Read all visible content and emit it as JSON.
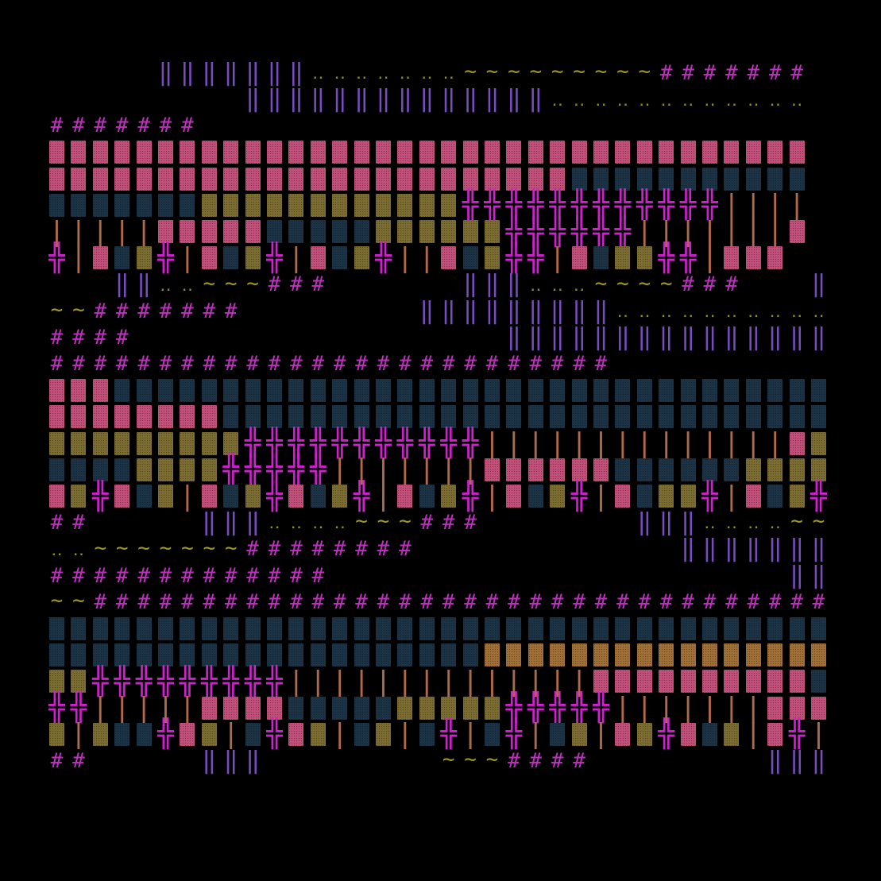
{
  "palette": {
    "background": "#000000",
    "hash": "#c030c0",
    "double_line": "#7a4cc2",
    "dots": "#8f8f30",
    "tilde": "#a09820",
    "cross": "#d020d0",
    "bar": "#b06a48",
    "block_pink": "#c2507a",
    "block_navy": "#1c3346",
    "block_olive": "#7c6e32",
    "block_orange": "#a07038"
  },
  "glyph_legend": {
    "#": "hash",
    "|": "double_line",
    ":": "dots",
    "~": "tilde",
    "+": "cross",
    "!": "bar",
    "P": "block_pink",
    "N": "block_navy",
    "O": "block_olive",
    "R": "block_orange"
  },
  "rows": [
    "                                   ",
    "     |||||||:::::::~~~~~~~~~#######",
    "         ||||||||||||||::::::::::::",
    "#######                            ",
    "PPPPPPPPPPPPPPPPPPPPPPPPPPPPPPPPPPP",
    "PPPPPPPPPPPPPPPPPPPPPPPPNNNNNNNNNNN",
    "NNNNNNNOOOOOOOOOOOO++++++++++++!!!!",
    "!!!!!PPPPPNNNNNOOOOOO++++++!!!!!!!P",
    "+!PNO+!PNO+!PNO+!!PNO++!PNOO++!PPP",
    "   ||::~~~###      |||:::~~~~###   |||::",
    "~~#######        |||||||||:::::::::::~~~~",
    "####                 ||||||||||||||||",
    "##########################          ",
    "PPPNNNNNNNNNNNNNNNNNNNNNNNNNNNNNNNNN",
    "PPPPPPPPNNNNNNNNNNNNNNNNNNNNNNNNNNNN",
    "OOOOOOOOO+++++++++++!!!!!!!!!!!!!!PO",
    "NNNNOOOO+++++!!!!!!!PPPPPPNNNNNNOOOOR",
    "PO+PNO!PNO+PNO+!PNO+!PNO+!PNOO+!PNO+",
    "##     |||::::~~~###       |||::::~~~####",
    "::~~~~~~~########            ||||||||",
    "#############                     |||",
    "~~##################################",
    "NNNNNNNNNNNNNNNNNNNNNNNNNNNNNNNNNNNN",
    "NNNNNNNNNNNNNNNNNNNNRRRRRRRRRRRRRRRR",
    "OO+++++++++!!!!!!!!!!!!!!PPPPPPPPPPNN",
    "++!!!!!PPPPNNNNNOOOOO+++++!!!!!!!PPP",
    "O!ONN+PO!N+PO!NO!N+!N+!NO!PO+PNO!P+!",
    "##     |||        ~~~####        ||||       ~~~~#"
  ]
}
